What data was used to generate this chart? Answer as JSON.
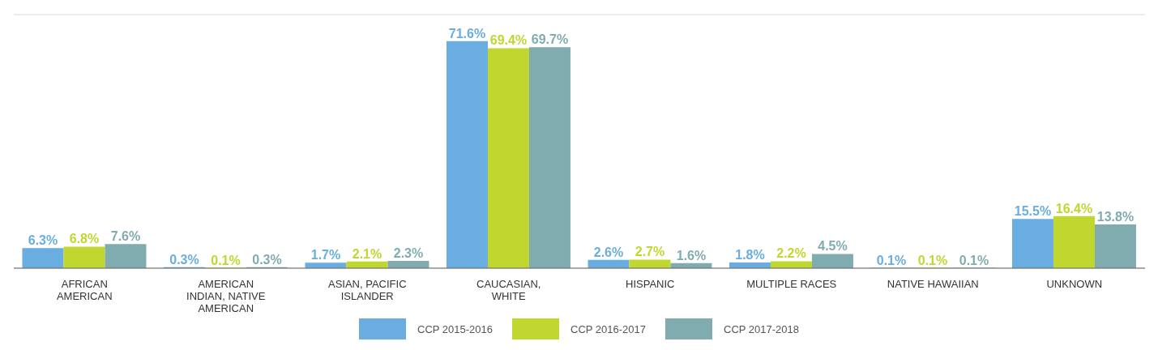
{
  "chart_data": {
    "type": "bar",
    "categories": [
      "AFRICAN AMERICAN",
      "AMERICAN INDIAN, NATIVE AMERICAN",
      "ASIAN, PACIFIC ISLANDER",
      "CAUCASIAN, WHITE",
      "HISPANIC",
      "MULTIPLE RACES",
      "NATIVE HAWAIIAN",
      "UNKNOWN"
    ],
    "series": [
      {
        "name": "CCP 2015-2016",
        "color": "#6aade0",
        "values": [
          6.3,
          0.3,
          1.7,
          71.6,
          2.6,
          1.8,
          0.1,
          15.5
        ],
        "value_labels": [
          "6.3%",
          "0.3%",
          "1.7%",
          "71.6%",
          "2.6%",
          "1.8%",
          "0.1%",
          "15.5%"
        ]
      },
      {
        "name": "CCP 2016-2017",
        "color": "#c0d72f",
        "values": [
          6.8,
          0.1,
          2.1,
          69.4,
          2.7,
          2.2,
          0.1,
          16.4
        ],
        "value_labels": [
          "6.8%",
          "0.1%",
          "2.1%",
          "69.4%",
          "2.7%",
          "2.2%",
          "0.1%",
          "16.4%"
        ]
      },
      {
        "name": "CCP 2017-2018",
        "color": "#80acb0",
        "values": [
          7.6,
          0.3,
          2.3,
          69.7,
          1.6,
          4.5,
          0.1,
          13.8
        ],
        "value_labels": [
          "7.6%",
          "0.3%",
          "2.3%",
          "69.7%",
          "1.6%",
          "4.5%",
          "0.1%",
          "13.8%"
        ]
      }
    ],
    "ylim": [
      0,
      80
    ],
    "tick_labels": "x",
    "grid": "y",
    "legend": "bottom"
  }
}
